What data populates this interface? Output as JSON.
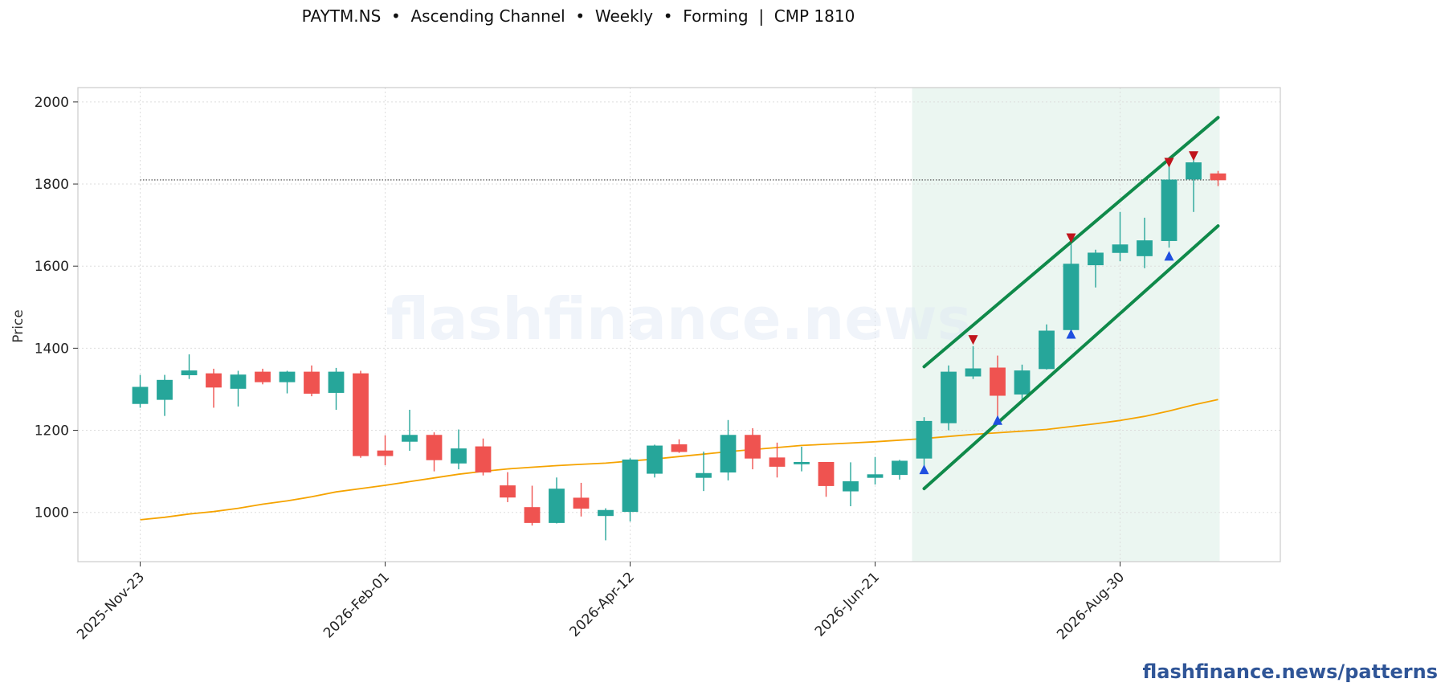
{
  "title": "PAYTM.NS  •  Ascending Channel  •  Weekly  •  Forming  |  CMP 1810",
  "watermark_center": "flashfinance.news",
  "watermark_footer": "flashfinance.news/patterns",
  "colors": {
    "up": "#26a69a",
    "down": "#ef5350",
    "ma": "#f5a300",
    "channel": "#0f8a4a",
    "zone": "#e8f5ee",
    "marker_up": "#1f4fe0",
    "marker_down": "#c0141c",
    "cmp_line": "#444444"
  },
  "chart_data": {
    "type": "candlestick",
    "ylabel": "Price",
    "ylim": [
      880,
      2035
    ],
    "yticks": [
      1000,
      1200,
      1400,
      1600,
      1800,
      2000
    ],
    "xticks": [
      "2025-Nov-23",
      "2026-Feb-01",
      "2026-Apr-12",
      "2026-Jun-21",
      "2026-Aug-30"
    ],
    "grid": true,
    "cmp": 1810,
    "candles": [
      {
        "date": "2025-Nov-23",
        "o": 1265,
        "h": 1335,
        "l": 1255,
        "c": 1305
      },
      {
        "date": "2025-Nov-30",
        "o": 1275,
        "h": 1335,
        "l": 1235,
        "c": 1322
      },
      {
        "date": "2025-Dec-07",
        "o": 1335,
        "h": 1385,
        "l": 1325,
        "c": 1345
      },
      {
        "date": "2025-Dec-14",
        "o": 1338,
        "h": 1350,
        "l": 1255,
        "c": 1305
      },
      {
        "date": "2025-Dec-21",
        "o": 1302,
        "h": 1345,
        "l": 1258,
        "c": 1335
      },
      {
        "date": "2025-Dec-28",
        "o": 1342,
        "h": 1350,
        "l": 1312,
        "c": 1318
      },
      {
        "date": "2026-Jan-04",
        "o": 1318,
        "h": 1345,
        "l": 1290,
        "c": 1342
      },
      {
        "date": "2026-Jan-11",
        "o": 1342,
        "h": 1358,
        "l": 1283,
        "c": 1290
      },
      {
        "date": "2026-Jan-18",
        "o": 1292,
        "h": 1352,
        "l": 1250,
        "c": 1342
      },
      {
        "date": "2026-Jan-25",
        "o": 1338,
        "h": 1345,
        "l": 1133,
        "c": 1138
      },
      {
        "date": "2026-Feb-01",
        "o": 1150,
        "h": 1188,
        "l": 1115,
        "c": 1138
      },
      {
        "date": "2026-Feb-08",
        "o": 1173,
        "h": 1250,
        "l": 1150,
        "c": 1188
      },
      {
        "date": "2026-Feb-15",
        "o": 1188,
        "h": 1195,
        "l": 1100,
        "c": 1128
      },
      {
        "date": "2026-Feb-22",
        "o": 1120,
        "h": 1202,
        "l": 1105,
        "c": 1155
      },
      {
        "date": "2026-Mar-01",
        "o": 1160,
        "h": 1180,
        "l": 1090,
        "c": 1098
      },
      {
        "date": "2026-Mar-08",
        "o": 1065,
        "h": 1098,
        "l": 1025,
        "c": 1037
      },
      {
        "date": "2026-Mar-15",
        "o": 1012,
        "h": 1065,
        "l": 968,
        "c": 975
      },
      {
        "date": "2026-Mar-22",
        "o": 975,
        "h": 1085,
        "l": 973,
        "c": 1057
      },
      {
        "date": "2026-Mar-29",
        "o": 1035,
        "h": 1072,
        "l": 990,
        "c": 1010
      },
      {
        "date": "2026-Apr-05",
        "o": 992,
        "h": 1010,
        "l": 932,
        "c": 1005
      },
      {
        "date": "2026-Apr-12",
        "o": 1002,
        "h": 1132,
        "l": 978,
        "c": 1128
      },
      {
        "date": "2026-Apr-19",
        "o": 1095,
        "h": 1165,
        "l": 1085,
        "c": 1162
      },
      {
        "date": "2026-Apr-26",
        "o": 1165,
        "h": 1178,
        "l": 1145,
        "c": 1148
      },
      {
        "date": "2026-May-03",
        "o": 1085,
        "h": 1148,
        "l": 1052,
        "c": 1095
      },
      {
        "date": "2026-May-10",
        "o": 1098,
        "h": 1225,
        "l": 1078,
        "c": 1188
      },
      {
        "date": "2026-May-17",
        "o": 1188,
        "h": 1205,
        "l": 1105,
        "c": 1132
      },
      {
        "date": "2026-May-24",
        "o": 1133,
        "h": 1170,
        "l": 1085,
        "c": 1112
      },
      {
        "date": "2026-May-31",
        "o": 1118,
        "h": 1160,
        "l": 1100,
        "c": 1122
      },
      {
        "date": "2026-Jun-07",
        "o": 1122,
        "h": 1122,
        "l": 1038,
        "c": 1065
      },
      {
        "date": "2026-Jun-14",
        "o": 1052,
        "h": 1122,
        "l": 1015,
        "c": 1075
      },
      {
        "date": "2026-Jun-21",
        "o": 1085,
        "h": 1135,
        "l": 1068,
        "c": 1092
      },
      {
        "date": "2026-Jun-28",
        "o": 1092,
        "h": 1128,
        "l": 1080,
        "c": 1125
      },
      {
        "date": "2026-Jul-05",
        "o": 1132,
        "h": 1232,
        "l": 1112,
        "c": 1222
      },
      {
        "date": "2026-Jul-12",
        "o": 1218,
        "h": 1358,
        "l": 1200,
        "c": 1342
      },
      {
        "date": "2026-Jul-19",
        "o": 1332,
        "h": 1405,
        "l": 1325,
        "c": 1350
      },
      {
        "date": "2026-Jul-26",
        "o": 1352,
        "h": 1382,
        "l": 1225,
        "c": 1285
      },
      {
        "date": "2026-Aug-02",
        "o": 1288,
        "h": 1360,
        "l": 1270,
        "c": 1345
      },
      {
        "date": "2026-Aug-09",
        "o": 1350,
        "h": 1458,
        "l": 1348,
        "c": 1442
      },
      {
        "date": "2026-Aug-16",
        "o": 1445,
        "h": 1660,
        "l": 1440,
        "c": 1605
      },
      {
        "date": "2026-Aug-23",
        "o": 1603,
        "h": 1640,
        "l": 1548,
        "c": 1632
      },
      {
        "date": "2026-Aug-30",
        "o": 1633,
        "h": 1732,
        "l": 1612,
        "c": 1652
      },
      {
        "date": "2026-Sep-06",
        "o": 1625,
        "h": 1718,
        "l": 1595,
        "c": 1662
      },
      {
        "date": "2026-Sep-13",
        "o": 1662,
        "h": 1862,
        "l": 1645,
        "c": 1810
      },
      {
        "date": "2026-Sep-20",
        "o": 1812,
        "h": 1858,
        "l": 1732,
        "c": 1852
      },
      {
        "date": "2026-Sep-27",
        "o": 1825,
        "h": 1832,
        "l": 1795,
        "c": 1810
      }
    ],
    "moving_average": [
      982,
      988,
      996,
      1002,
      1010,
      1020,
      1028,
      1038,
      1050,
      1058,
      1066,
      1075,
      1084,
      1093,
      1100,
      1106,
      1110,
      1114,
      1117,
      1120,
      1125,
      1130,
      1136,
      1142,
      1148,
      1153,
      1158,
      1163,
      1166,
      1169,
      1172,
      1176,
      1180,
      1185,
      1190,
      1194,
      1198,
      1202,
      1209,
      1216,
      1224,
      1234,
      1247,
      1262,
      1275
    ],
    "pattern_zone": {
      "start": "2026-Jul-05",
      "end": "2026-Sep-27"
    },
    "channel_upper": {
      "start": {
        "date": "2026-Jul-05",
        "price": 1355
      },
      "end": {
        "date": "2026-Sep-27",
        "price": 1962
      }
    },
    "channel_lower": {
      "start": {
        "date": "2026-Jul-05",
        "price": 1058
      },
      "end": {
        "date": "2026-Sep-27",
        "price": 1698
      }
    },
    "swing_highs": [
      {
        "date": "2026-Jul-19",
        "price": 1420
      },
      {
        "date": "2026-Aug-16",
        "price": 1668
      },
      {
        "date": "2026-Sep-13",
        "price": 1852
      },
      {
        "date": "2026-Sep-20",
        "price": 1868
      }
    ],
    "swing_lows": [
      {
        "date": "2026-Jul-05",
        "price": 1105
      },
      {
        "date": "2026-Jul-26",
        "price": 1225
      },
      {
        "date": "2026-Aug-16",
        "price": 1435
      },
      {
        "date": "2026-Sep-13",
        "price": 1625
      }
    ]
  }
}
